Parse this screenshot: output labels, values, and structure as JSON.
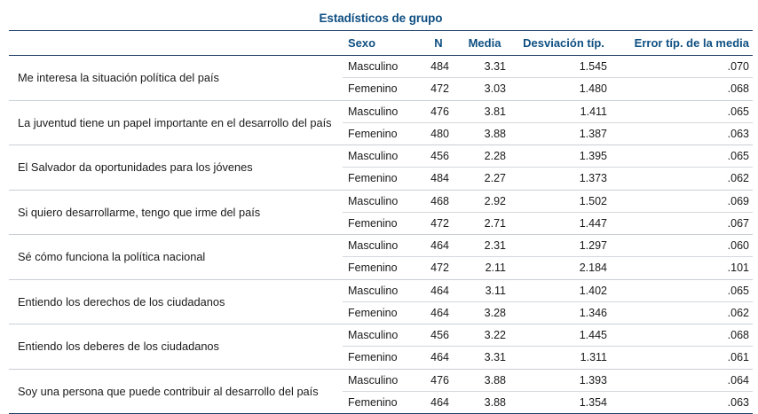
{
  "table": {
    "title": "Estadísticos de grupo",
    "headers": {
      "sex": "Sexo",
      "n": "N",
      "mean": "Media",
      "sd": "Desviación típ.",
      "se": "Error típ. de la media"
    },
    "groups": [
      {
        "label": "Me interesa la situación política del país",
        "rows": [
          {
            "sex": "Masculino",
            "n": "484",
            "mean": "3.31",
            "sd": "1.545",
            "se": ".070"
          },
          {
            "sex": "Femenino",
            "n": "472",
            "mean": "3.03",
            "sd": "1.480",
            "se": ".068"
          }
        ]
      },
      {
        "label": "La juventud tiene un papel importante en el desarrollo del país",
        "rows": [
          {
            "sex": "Masculino",
            "n": "476",
            "mean": "3.81",
            "sd": "1.411",
            "se": ".065"
          },
          {
            "sex": "Femenino",
            "n": "480",
            "mean": "3.88",
            "sd": "1.387",
            "se": ".063"
          }
        ]
      },
      {
        "label": "El Salvador da oportunidades para los jóvenes",
        "rows": [
          {
            "sex": "Masculino",
            "n": "456",
            "mean": "2.28",
            "sd": "1.395",
            "se": ".065"
          },
          {
            "sex": "Femenino",
            "n": "484",
            "mean": "2.27",
            "sd": "1.373",
            "se": ".062"
          }
        ]
      },
      {
        "label": "Si quiero desarrollarme, tengo que irme del país",
        "rows": [
          {
            "sex": "Masculino",
            "n": "468",
            "mean": "2.92",
            "sd": "1.502",
            "se": ".069"
          },
          {
            "sex": "Femenino",
            "n": "472",
            "mean": "2.71",
            "sd": "1.447",
            "se": ".067"
          }
        ]
      },
      {
        "label": "Sé cómo funciona la política nacional",
        "rows": [
          {
            "sex": "Masculino",
            "n": "464",
            "mean": "2.31",
            "sd": "1.297",
            "se": ".060"
          },
          {
            "sex": "Femenino",
            "n": "472",
            "mean": "2.11",
            "sd": "2.184",
            "se": ".101"
          }
        ]
      },
      {
        "label": "Entiendo los derechos de los ciudadanos",
        "rows": [
          {
            "sex": "Masculino",
            "n": "464",
            "mean": "3.11",
            "sd": "1.402",
            "se": ".065"
          },
          {
            "sex": "Femenino",
            "n": "464",
            "mean": "3.28",
            "sd": "1.346",
            "se": ".062"
          }
        ]
      },
      {
        "label": "Entiendo los deberes de los ciudadanos",
        "rows": [
          {
            "sex": "Masculino",
            "n": "456",
            "mean": "3.22",
            "sd": "1.445",
            "se": ".068"
          },
          {
            "sex": "Femenino",
            "n": "464",
            "mean": "3.31",
            "sd": "1.311",
            "se": ".061"
          }
        ]
      },
      {
        "label": "Soy una persona que puede contribuir al desarrollo del país",
        "rows": [
          {
            "sex": "Masculino",
            "n": "476",
            "mean": "3.88",
            "sd": "1.393",
            "se": ".064"
          },
          {
            "sex": "Femenino",
            "n": "464",
            "mean": "3.88",
            "sd": "1.354",
            "se": ".063"
          }
        ]
      }
    ]
  }
}
